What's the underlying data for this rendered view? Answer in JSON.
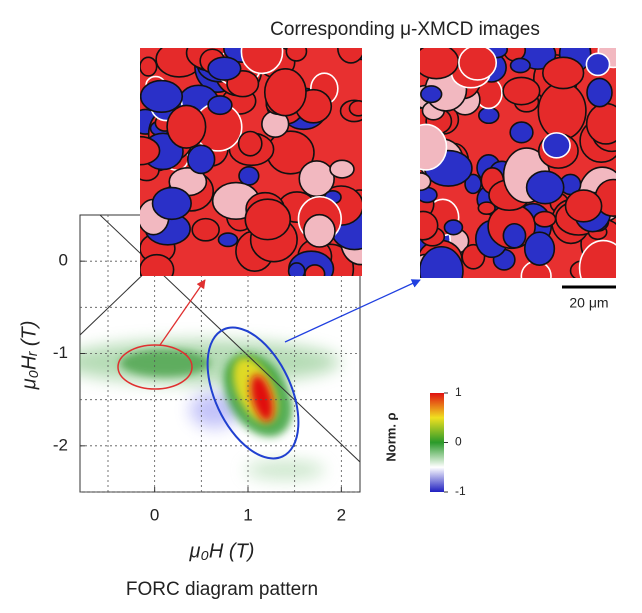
{
  "chart_data": {
    "type": "forc",
    "title": "Corresponding μ-XMCD images",
    "caption": "FORC diagram pattern",
    "xlabel": "μ₀H (T)",
    "ylabel": "μ₀Hᵣ (T)",
    "xlim": [
      -0.8,
      2.2
    ],
    "ylim": [
      -2.5,
      0.5
    ],
    "xticks": [
      0,
      1,
      2
    ],
    "yticks": [
      0,
      -1,
      -2
    ],
    "grid_step": 0.5,
    "colorbar": {
      "label": "Norm. ρ",
      "lim": [
        -1,
        1
      ],
      "ticks": [
        1,
        0,
        -1
      ],
      "colors": [
        "#2020c0",
        "#ffffff",
        "#2a9a2a",
        "#f0e020",
        "#e01010"
      ]
    },
    "scale_bar": "20 μm"
  }
}
